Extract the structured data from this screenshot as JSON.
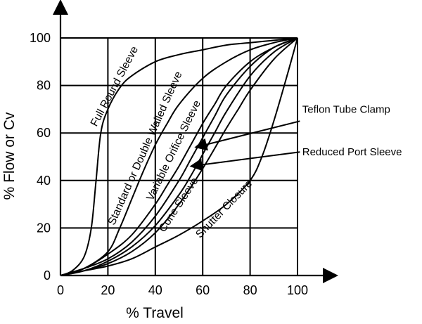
{
  "chart_data": {
    "type": "line",
    "xlabel": "% Travel",
    "ylabel": "% Flow or Cv",
    "xlim": [
      0,
      100
    ],
    "ylim": [
      0,
      100
    ],
    "xticks": [
      0,
      20,
      40,
      60,
      80,
      100
    ],
    "yticks": [
      0,
      20,
      40,
      60,
      80,
      100
    ],
    "grid": true,
    "series": [
      {
        "name": "Full Round Sleeve",
        "x": [
          0,
          5,
          10,
          13,
          15,
          17,
          20,
          25,
          30,
          40,
          50,
          60,
          70,
          80,
          90,
          100
        ],
        "y": [
          0,
          2,
          8,
          20,
          40,
          60,
          70,
          79,
          84,
          90,
          93,
          95,
          97,
          98,
          99,
          100
        ]
      },
      {
        "name": "Standard or Double Walled Sleeve",
        "x": [
          0,
          10,
          20,
          25,
          30,
          35,
          40,
          45,
          50,
          60,
          70,
          80,
          90,
          100
        ],
        "y": [
          0,
          3,
          10,
          20,
          32,
          44,
          55,
          64,
          72,
          83,
          90,
          95,
          98,
          100
        ]
      },
      {
        "name": "Variable Orifice Sleeve",
        "x": [
          0,
          10,
          20,
          30,
          40,
          45,
          50,
          55,
          60,
          65,
          70,
          80,
          90,
          100
        ],
        "y": [
          0,
          3,
          9,
          17,
          30,
          38,
          46,
          55,
          64,
          72,
          80,
          90,
          96,
          100
        ]
      },
      {
        "name": "Teflon Tube Clamp",
        "x": [
          0,
          10,
          20,
          30,
          40,
          50,
          55,
          60,
          65,
          70,
          80,
          90,
          100
        ],
        "y": [
          0,
          3,
          7,
          14,
          25,
          40,
          49,
          58,
          67,
          76,
          88,
          96,
          100
        ]
      },
      {
        "name": "Reduced Port Sleeve",
        "x": [
          0,
          10,
          20,
          30,
          40,
          50,
          55,
          60,
          65,
          70,
          80,
          90,
          100
        ],
        "y": [
          0,
          2,
          6,
          12,
          21,
          34,
          42,
          51,
          60,
          69,
          84,
          94,
          100
        ]
      },
      {
        "name": "Cone Sleeve",
        "x": [
          0,
          10,
          20,
          30,
          40,
          50,
          60,
          70,
          75,
          80,
          90,
          100
        ],
        "y": [
          0,
          2,
          5,
          10,
          18,
          30,
          45,
          62,
          70,
          78,
          91,
          100
        ]
      },
      {
        "name": "Shutter Closure",
        "x": [
          0,
          10,
          20,
          30,
          40,
          50,
          60,
          70,
          80,
          85,
          90,
          95,
          100
        ],
        "y": [
          0,
          2,
          4,
          7,
          12,
          17,
          23,
          30,
          40,
          50,
          65,
          82,
          100
        ]
      }
    ],
    "curve_labels": [
      {
        "text": "Full Round Sleeve",
        "at": [
          24,
          79
        ],
        "angle": -62
      },
      {
        "text": "Standard or Double Walled Sleeve",
        "at": [
          37,
          53
        ],
        "angle": -66
      },
      {
        "text": "Variable Orifice Sleeve",
        "at": [
          49,
          52
        ],
        "angle": -64
      },
      {
        "text": "Cone Sleeve",
        "at": [
          51,
          29
        ],
        "angle": -57
      },
      {
        "text": "Shutter Closure",
        "at": [
          70,
          27
        ],
        "angle": -46
      }
    ],
    "callouts": [
      {
        "text": "Teflon Tube Clamp",
        "text_at": [
          102,
          70
        ],
        "arrow_from": [
          101,
          65
        ],
        "arrow_to": [
          57,
          54
        ]
      },
      {
        "text": "Reduced Port Sleeve",
        "text_at": [
          102,
          52
        ],
        "arrow_from": [
          101,
          52
        ],
        "arrow_to": [
          55,
          46
        ]
      }
    ]
  }
}
